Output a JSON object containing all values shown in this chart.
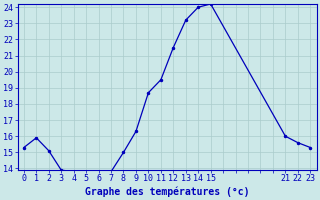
{
  "hours": [
    0,
    1,
    2,
    3,
    4,
    5,
    6,
    7,
    8,
    9,
    10,
    11,
    12,
    13,
    14,
    15,
    21,
    22,
    23
  ],
  "temps": [
    15.3,
    15.9,
    15.1,
    13.9,
    13.8,
    13.8,
    13.8,
    13.8,
    15.0,
    16.3,
    18.7,
    19.5,
    21.5,
    23.2,
    24.0,
    24.2,
    16.0,
    15.6,
    15.3
  ],
  "xlabel": "Graphe des températures (°c)",
  "ylim_min": 14,
  "ylim_max": 24,
  "xlim_min": -0.5,
  "xlim_max": 23.5,
  "yticks": [
    14,
    15,
    16,
    17,
    18,
    19,
    20,
    21,
    22,
    23,
    24
  ],
  "xticks_all": [
    0,
    1,
    2,
    3,
    4,
    5,
    6,
    7,
    8,
    9,
    10,
    11,
    12,
    13,
    14,
    15,
    16,
    17,
    18,
    19,
    20,
    21,
    22,
    23
  ],
  "xtick_labels_visible": [
    0,
    1,
    2,
    3,
    4,
    5,
    6,
    7,
    8,
    9,
    10,
    11,
    12,
    13,
    14,
    15,
    21,
    22,
    23
  ],
  "line_color": "#0000bb",
  "marker_color": "#0000bb",
  "bg_color": "#cce8e8",
  "grid_color_major": "#aacccc",
  "grid_color_minor": "#bbdddd",
  "axis_color": "#0000bb",
  "tick_color": "#0000bb",
  "label_color": "#0000bb",
  "xlabel_fontsize": 7.0,
  "tick_fontsize": 6.0,
  "xlabel_bold": true
}
